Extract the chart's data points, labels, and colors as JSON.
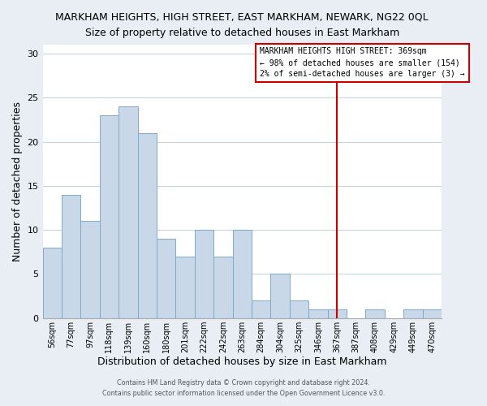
{
  "title": "MARKHAM HEIGHTS, HIGH STREET, EAST MARKHAM, NEWARK, NG22 0QL",
  "subtitle": "Size of property relative to detached houses in East Markham",
  "xlabel": "Distribution of detached houses by size in East Markham",
  "ylabel": "Number of detached properties",
  "bar_labels": [
    "56sqm",
    "77sqm",
    "97sqm",
    "118sqm",
    "139sqm",
    "160sqm",
    "180sqm",
    "201sqm",
    "222sqm",
    "242sqm",
    "263sqm",
    "284sqm",
    "304sqm",
    "325sqm",
    "346sqm",
    "367sqm",
    "387sqm",
    "408sqm",
    "429sqm",
    "449sqm",
    "470sqm"
  ],
  "bar_values": [
    8,
    14,
    11,
    23,
    24,
    21,
    9,
    7,
    10,
    7,
    10,
    2,
    5,
    2,
    1,
    1,
    0,
    1,
    0,
    1,
    1
  ],
  "bar_color": "#c8d8e8",
  "bar_edgecolor": "#7baac8",
  "ylim": [
    0,
    31
  ],
  "yticks": [
    0,
    5,
    10,
    15,
    20,
    25,
    30
  ],
  "vline_x": 15,
  "vline_color": "#cc0000",
  "annotation_title": "MARKHAM HEIGHTS HIGH STREET: 369sqm",
  "annotation_line1": "← 98% of detached houses are smaller (154)",
  "annotation_line2": "2% of semi-detached houses are larger (3) →",
  "annotation_box_facecolor": "white",
  "annotation_box_edgecolor": "#cc0000",
  "footer1": "Contains HM Land Registry data © Crown copyright and database right 2024.",
  "footer2": "Contains public sector information licensed under the Open Government Licence v3.0.",
  "fig_facecolor": "#e8eef4",
  "plot_facecolor": "white",
  "grid_color": "#c8d4dc"
}
